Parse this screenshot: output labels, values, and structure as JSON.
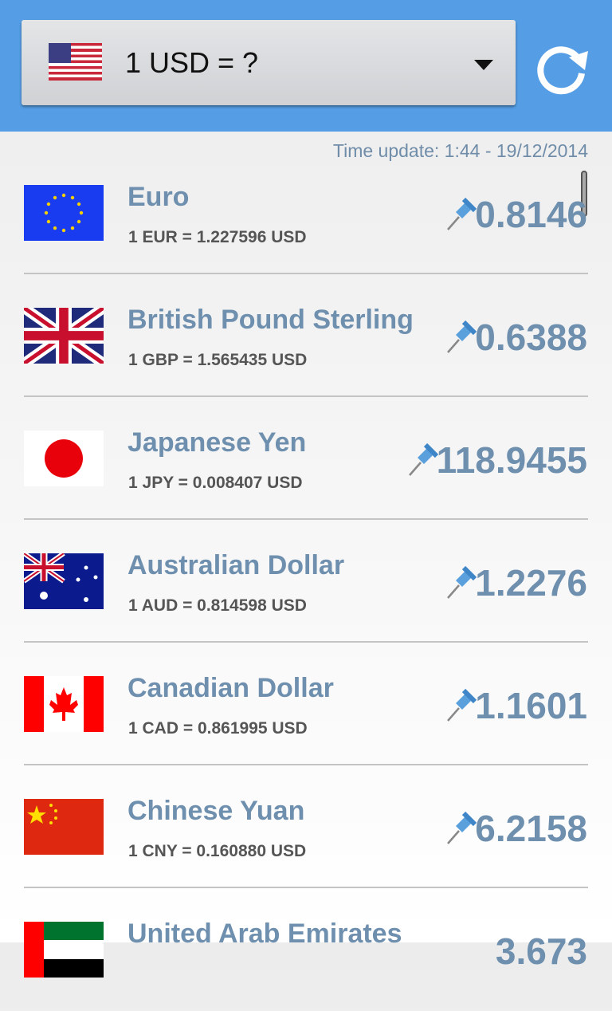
{
  "header": {
    "selector_label": "1 USD = ?",
    "base_flag": "us-flag-icon",
    "refresh_icon": "refresh-icon"
  },
  "time_update": "Time update: 1:44 - 19/12/2014",
  "colors": {
    "header": "#559ee6",
    "accent_text": "#6e8fae"
  },
  "currencies": [
    {
      "name": "Euro",
      "conversion": "1 EUR = 1.227596 USD",
      "rate": "0.8146",
      "flag": "eu"
    },
    {
      "name": "British Pound Sterling",
      "conversion": "1 GBP = 1.565435 USD",
      "rate": "0.6388",
      "flag": "gb"
    },
    {
      "name": "Japanese Yen",
      "conversion": "1 JPY = 0.008407 USD",
      "rate": "118.9455",
      "flag": "jp"
    },
    {
      "name": "Australian Dollar",
      "conversion": "1 AUD = 0.814598 USD",
      "rate": "1.2276",
      "flag": "au"
    },
    {
      "name": "Canadian Dollar",
      "conversion": "1 CAD = 0.861995 USD",
      "rate": "1.1601",
      "flag": "ca"
    },
    {
      "name": "Chinese Yuan",
      "conversion": "1 CNY = 0.160880 USD",
      "rate": "6.2158",
      "flag": "cn"
    },
    {
      "name": "United Arab Emirates",
      "conversion": "",
      "rate": "3.673",
      "flag": "ae"
    }
  ]
}
